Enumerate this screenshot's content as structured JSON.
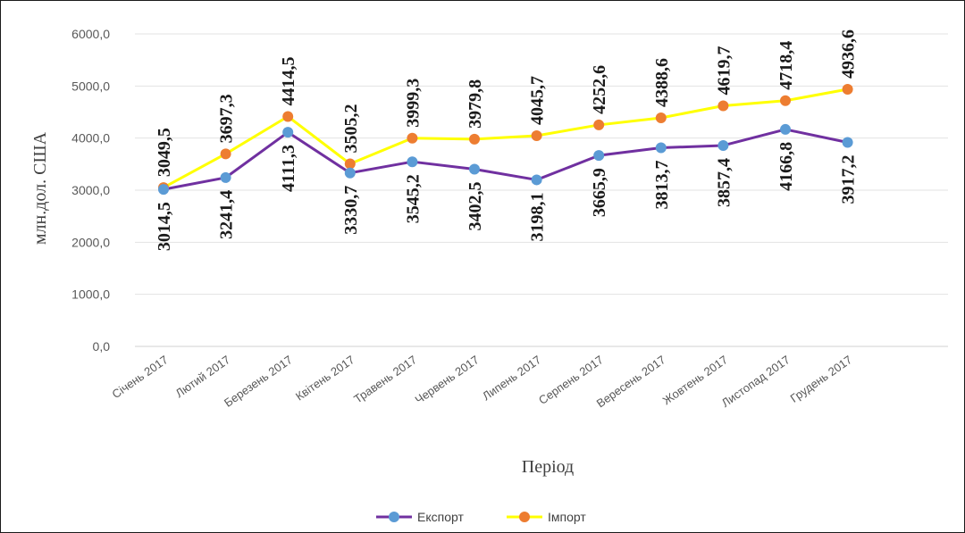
{
  "chart_data": {
    "type": "line",
    "title": "",
    "xlabel": "Період",
    "ylabel": "млн.дол. США",
    "ylim": [
      0,
      6000
    ],
    "yticks": [
      "0,0",
      "1000,0",
      "2000,0",
      "3000,0",
      "4000,0",
      "5000,0",
      "6000,0"
    ],
    "categories": [
      "Січень 2017",
      "Лютий 2017",
      "Березень 2017",
      "Квітень 2017",
      "Травень 2017",
      "Червень 2017",
      "Липень 2017",
      "Серпень 2017",
      "Вересень 2017",
      "Жовтень 2017",
      "Листопад 2017",
      "Грудень 2017"
    ],
    "series": [
      {
        "name": "Експорт",
        "line_color": "#7030a0",
        "marker_color": "#5b9bd5",
        "values": [
          3014.5,
          3241.4,
          4111.3,
          3330.7,
          3545.2,
          3402.5,
          3198.1,
          3665.9,
          3813.7,
          3857.4,
          4166.8,
          3917.2
        ],
        "labels": [
          "3014,5",
          "3241,4",
          "4111,3",
          "3330,7",
          "3545,2",
          "3402,5",
          "3198,1",
          "3665,9",
          "3813,7",
          "3857,4",
          "4166,8",
          "3917,2"
        ]
      },
      {
        "name": "Імпорт",
        "line_color": "#ffff00",
        "marker_color": "#ed7d31",
        "values": [
          3049.5,
          3697.3,
          4414.5,
          3505.2,
          3999.3,
          3979.8,
          4045.7,
          4252.6,
          4388.6,
          4619.7,
          4718.4,
          4936.6
        ],
        "labels": [
          "3049,5",
          "3697,3",
          "4414,5",
          "3505,2",
          "3999,3",
          "3979,8",
          "4045,7",
          "4252,6",
          "4388,6",
          "4619,7",
          "4718,4",
          "4936,6"
        ]
      }
    ],
    "grid": true,
    "legend": "bottom"
  }
}
